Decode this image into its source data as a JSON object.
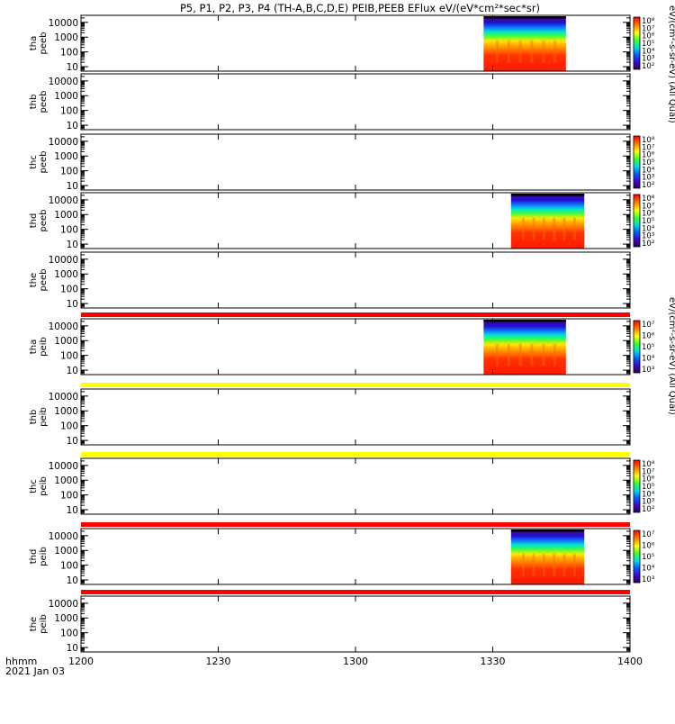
{
  "title": "P5, P1, P2, P3, P4 (TH-A,B,C,D,E) PEIB,PEEB EFlux eV/(eV*cm²*sec*sr)",
  "chart_data": {
    "type": "heatmap",
    "xaxis": {
      "ticks": [
        "1200",
        "1230",
        "1300",
        "1330",
        "1400"
      ],
      "tick_minutes": [
        0,
        30,
        60,
        90,
        120
      ],
      "range_minutes": [
        0,
        120
      ],
      "label": "hhmm",
      "date": "2021 Jan 03"
    },
    "yaxis": {
      "scale": "log",
      "range": [
        5,
        30000
      ],
      "ticks": [
        "10",
        "100",
        "1000",
        "10000"
      ]
    },
    "colorbar_labels": {
      "electron": "eV/(cm²-s-sr-eV) (All Qual)",
      "ion": "eV/(cm²-s-sr-eV) (All Qual)"
    },
    "panels": [
      {
        "probe": "tha",
        "product": "peeb",
        "label": "tha\npeeb",
        "data_minutes": [
          88,
          106
        ],
        "species": "electron",
        "colorbar": {
          "ticks": [
            "10⁸",
            "10⁷",
            "10⁶",
            "10⁵",
            "10⁴",
            "10³",
            "10²"
          ]
        }
      },
      {
        "probe": "thb",
        "product": "peeb",
        "label": "thb\npeeb",
        "data_minutes": null,
        "species": "electron"
      },
      {
        "probe": "thc",
        "product": "peeb",
        "label": "thc\npeeb",
        "data_minutes": null,
        "species": "electron",
        "colorbar": {
          "ticks": [
            "10⁸",
            "10⁷",
            "10⁶",
            "10⁵",
            "10⁴",
            "10³",
            "10²"
          ]
        }
      },
      {
        "probe": "thd",
        "product": "peeb",
        "label": "thd\npeeb",
        "data_minutes": [
          94,
          110
        ],
        "species": "electron",
        "colorbar": {
          "ticks": [
            "10⁸",
            "10⁷",
            "10⁶",
            "10⁵",
            "10⁴",
            "10³",
            "10²"
          ]
        }
      },
      {
        "probe": "the",
        "product": "peeb",
        "label": "the\npeeb",
        "data_minutes": null,
        "species": "electron"
      },
      {
        "probe": "tha",
        "product": "peib",
        "label": "tha\npeib",
        "data_minutes": [
          88,
          106
        ],
        "species": "ion",
        "colorbar": {
          "ticks": [
            "10⁷",
            "10⁶",
            "10⁵",
            "10⁴",
            "10³"
          ]
        }
      },
      {
        "probe": "thb",
        "product": "peib",
        "label": "thb\npeib",
        "data_minutes": null,
        "species": "ion"
      },
      {
        "probe": "thc",
        "product": "peib",
        "label": "thc\npeib",
        "data_minutes": null,
        "species": "ion",
        "colorbar": {
          "ticks": [
            "10⁸",
            "10⁷",
            "10⁶",
            "10⁵",
            "10⁴",
            "10³",
            "10²"
          ]
        }
      },
      {
        "probe": "thd",
        "product": "peib",
        "label": "thd\npeib",
        "data_minutes": [
          94,
          110
        ],
        "species": "ion",
        "colorbar": {
          "ticks": [
            "10⁷",
            "10⁶",
            "10⁵",
            "10⁴",
            "10³"
          ]
        }
      },
      {
        "probe": "the",
        "product": "peib",
        "label": "the\npeib",
        "data_minutes": null,
        "species": "ion"
      }
    ],
    "status_bars": [
      {
        "after_panel": 5,
        "color": "#ff0000"
      },
      {
        "after_panel": 6,
        "color": "#ffff00"
      },
      {
        "after_panel": 7,
        "color": "#ffff00"
      },
      {
        "after_panel": 8,
        "color": "#ff0000"
      },
      {
        "after_panel": 9,
        "color": "#ff0000"
      }
    ]
  }
}
